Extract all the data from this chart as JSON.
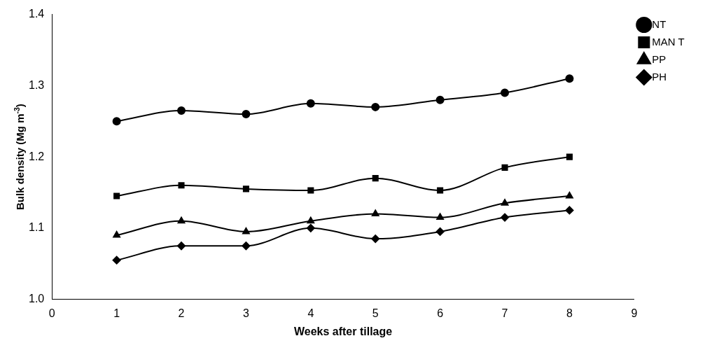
{
  "chart_data": {
    "type": "line",
    "xlabel": "Weeks after tillage",
    "ylabel": "Bulk density (Mg m$^{-3}$)",
    "x": [
      1,
      2,
      3,
      4,
      5,
      6,
      7,
      8
    ],
    "series": [
      {
        "name": "NT",
        "color": "#000000",
        "marker": "circle",
        "values": [
          1.25,
          1.265,
          1.26,
          1.275,
          1.27,
          1.28,
          1.29,
          1.31
        ]
      },
      {
        "name": "MAN T",
        "color": "#000000",
        "marker": "square",
        "values": [
          1.145,
          1.16,
          1.155,
          1.153,
          1.17,
          1.153,
          1.185,
          1.2
        ]
      },
      {
        "name": "PP",
        "color": "#000000",
        "marker": "triangle",
        "values": [
          1.09,
          1.11,
          1.095,
          1.11,
          1.12,
          1.115,
          1.135,
          1.145
        ]
      },
      {
        "name": "PH",
        "color": "#000000",
        "marker": "diamond",
        "values": [
          1.055,
          1.075,
          1.075,
          1.1,
          1.085,
          1.095,
          1.115,
          1.125
        ]
      }
    ],
    "xlim": [
      0,
      9
    ],
    "xticks": [
      0,
      1,
      2,
      3,
      4,
      5,
      6,
      7,
      8,
      9
    ],
    "ylim": [
      1,
      1.4
    ],
    "yticks": [
      {
        "value": 1,
        "label": "1.0"
      },
      1.1,
      1.2,
      1.3,
      1.4
    ],
    "grid": false,
    "legend": "top right"
  }
}
